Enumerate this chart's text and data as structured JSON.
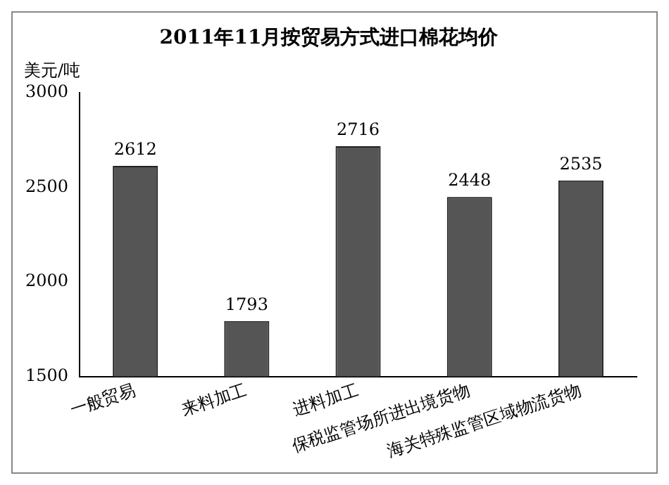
{
  "chart_data": {
    "type": "bar",
    "title": "2011年11月按贸易方式进口棉花均价",
    "ylabel": "美元/吨",
    "categories": [
      "一般贸易",
      "来料加工",
      "进料加工",
      "保税监管场所进出境货物",
      "海关特殊监管区域物流货物"
    ],
    "values": [
      2612,
      1793,
      2716,
      2448,
      2535
    ],
    "color": "#555555",
    "ylim": [
      1500,
      3000
    ],
    "yticks": [
      1500,
      2000,
      2500,
      3000
    ],
    "grid": false,
    "legend": false,
    "data_labels": true
  }
}
